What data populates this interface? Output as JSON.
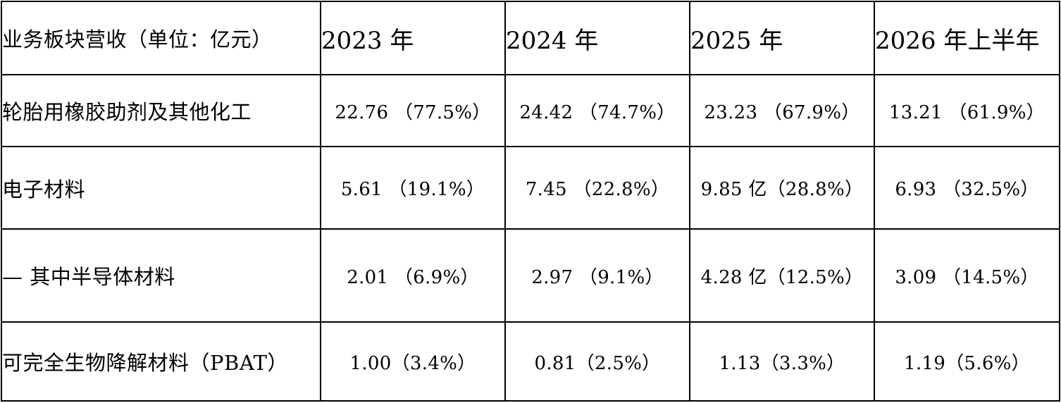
{
  "table": {
    "header": {
      "label": "业务板块营收（单位：亿元）",
      "years": [
        "2023 年",
        "2024 年",
        "2025 年",
        "2026 年上半年"
      ]
    },
    "rows": [
      {
        "label": "轮胎用橡胶助剂及其他化工",
        "cells": [
          "22.76 （77.5%）",
          "24.42 （74.7%）",
          "23.23 （67.9%）",
          "13.21 （61.9%）"
        ]
      },
      {
        "label": "电子材料",
        "cells": [
          "5.61 （19.1%）",
          "7.45 （22.8%）",
          "9.85 亿（28.8%）",
          "6.93 （32.5%）"
        ]
      },
      {
        "label": "— 其中半导体材料",
        "cells": [
          "2.01 （6.9%）",
          "2.97 （9.1%）",
          "4.28 亿（12.5%）",
          "3.09 （14.5%）"
        ]
      },
      {
        "label": "可完全生物降解材料（PBAT）",
        "cells": [
          "1.00（3.4%）",
          "0.81（2.5%）",
          "1.13（3.3%）",
          "1.19（5.6%）"
        ]
      }
    ]
  }
}
